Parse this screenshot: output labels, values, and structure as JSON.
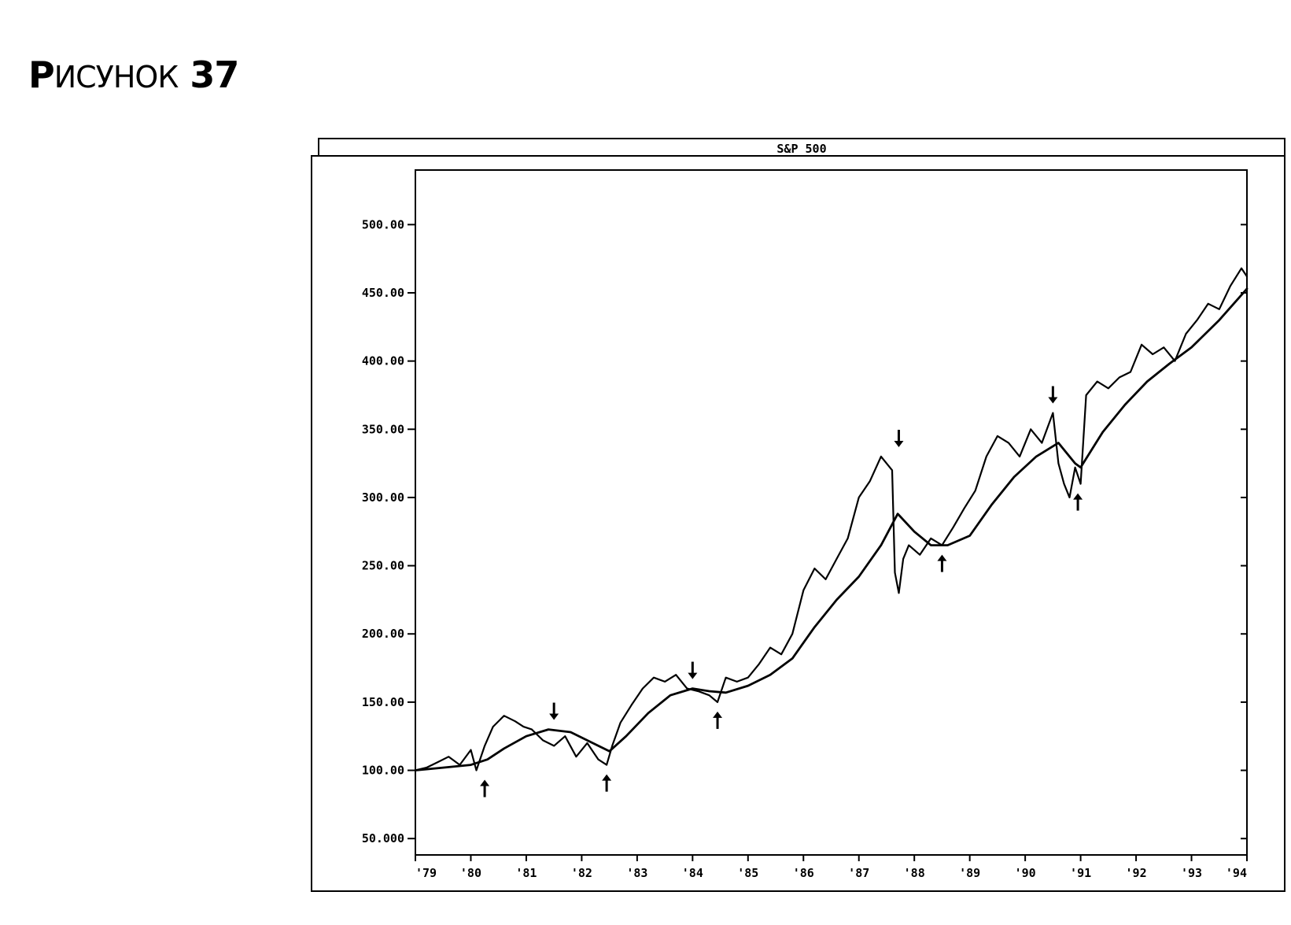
{
  "figure": {
    "caption_letter": "Р",
    "caption_rest": "ИСУНОК",
    "caption_number": "37"
  },
  "chart_data": {
    "type": "line",
    "title": "S&P 500",
    "xlabel": "",
    "ylabel": "",
    "ylim": [
      38,
      540
    ],
    "yticks": [
      50,
      100,
      150,
      200,
      250,
      300,
      350,
      400,
      450,
      500
    ],
    "ytick_labels": [
      "50.000",
      "100.00",
      "150.00",
      "200.00",
      "250.00",
      "300.00",
      "350.00",
      "400.00",
      "450.00",
      "500.00"
    ],
    "xlim": [
      1979.0,
      1994.0
    ],
    "xticks": [
      1979,
      1980,
      1981,
      1982,
      1983,
      1984,
      1985,
      1986,
      1987,
      1988,
      1989,
      1990,
      1991,
      1992,
      1993,
      1994
    ],
    "xtick_labels": [
      "'79",
      "'80",
      "'81",
      "'82",
      "'83",
      "'84",
      "'85",
      "'86",
      "'87",
      "'88",
      "'89",
      "'90",
      "'91",
      "'92",
      "'93",
      "'94"
    ],
    "grid": false,
    "series": [
      {
        "role": "price",
        "x": [
          1979.0,
          1979.2,
          1979.4,
          1979.6,
          1979.8,
          1980.0,
          1980.1,
          1980.25,
          1980.4,
          1980.6,
          1980.8,
          1980.95,
          1981.1,
          1981.3,
          1981.5,
          1981.7,
          1981.9,
          1982.1,
          1982.3,
          1982.45,
          1982.55,
          1982.7,
          1982.9,
          1983.1,
          1983.3,
          1983.5,
          1983.7,
          1983.9,
          1984.1,
          1984.3,
          1984.45,
          1984.6,
          1984.8,
          1985.0,
          1985.2,
          1985.4,
          1985.6,
          1985.8,
          1986.0,
          1986.2,
          1986.4,
          1986.6,
          1986.8,
          1987.0,
          1987.2,
          1987.4,
          1987.6,
          1987.65,
          1987.72,
          1987.8,
          1987.9,
          1988.1,
          1988.3,
          1988.5,
          1988.7,
          1988.9,
          1989.1,
          1989.3,
          1989.5,
          1989.7,
          1989.9,
          1990.1,
          1990.3,
          1990.5,
          1990.6,
          1990.7,
          1990.8,
          1990.9,
          1991.0,
          1991.1,
          1991.3,
          1991.5,
          1991.7,
          1991.9,
          1992.1,
          1992.3,
          1992.5,
          1992.7,
          1992.9,
          1993.1,
          1993.3,
          1993.5,
          1993.7,
          1993.9,
          1994.0
        ],
        "y": [
          100,
          102,
          106,
          110,
          104,
          115,
          100,
          118,
          132,
          140,
          136,
          132,
          130,
          122,
          118,
          125,
          110,
          120,
          108,
          104,
          118,
          135,
          148,
          160,
          168,
          165,
          170,
          160,
          158,
          155,
          150,
          168,
          165,
          168,
          178,
          190,
          185,
          200,
          232,
          248,
          240,
          255,
          270,
          300,
          312,
          330,
          320,
          245,
          230,
          255,
          265,
          258,
          270,
          265,
          278,
          292,
          305,
          330,
          345,
          340,
          330,
          350,
          340,
          362,
          325,
          310,
          300,
          322,
          310,
          375,
          385,
          380,
          388,
          392,
          412,
          405,
          410,
          400,
          420,
          430,
          442,
          438,
          455,
          468,
          462
        ],
        "name": ""
      },
      {
        "role": "moving-average",
        "x": [
          1979.0,
          1979.5,
          1980.0,
          1980.3,
          1980.6,
          1981.0,
          1981.4,
          1981.8,
          1982.2,
          1982.5,
          1982.8,
          1983.2,
          1983.6,
          1984.0,
          1984.3,
          1984.6,
          1985.0,
          1985.4,
          1985.8,
          1986.2,
          1986.6,
          1987.0,
          1987.4,
          1987.7,
          1988.0,
          1988.3,
          1988.6,
          1989.0,
          1989.4,
          1989.8,
          1990.2,
          1990.6,
          1990.9,
          1991.0,
          1991.4,
          1991.8,
          1992.2,
          1992.6,
          1993.0,
          1993.5,
          1994.0
        ],
        "y": [
          100,
          102,
          104,
          108,
          116,
          125,
          130,
          128,
          120,
          114,
          125,
          142,
          155,
          160,
          158,
          157,
          162,
          170,
          182,
          205,
          225,
          242,
          265,
          288,
          275,
          265,
          265,
          272,
          295,
          315,
          330,
          340,
          325,
          322,
          348,
          368,
          385,
          398,
          410,
          430,
          453
        ],
        "name": ""
      }
    ],
    "annotations": [
      {
        "type": "arrow-up",
        "x": 1980.25,
        "y": 100
      },
      {
        "type": "arrow-down",
        "x": 1981.5,
        "y": 130
      },
      {
        "type": "arrow-up",
        "x": 1982.45,
        "y": 104
      },
      {
        "type": "arrow-down",
        "x": 1984.0,
        "y": 160
      },
      {
        "type": "arrow-up",
        "x": 1984.45,
        "y": 150
      },
      {
        "type": "arrow-down",
        "x": 1987.72,
        "y": 330
      },
      {
        "type": "arrow-up",
        "x": 1988.5,
        "y": 265
      },
      {
        "type": "arrow-down",
        "x": 1990.5,
        "y": 362
      },
      {
        "type": "arrow-up",
        "x": 1990.95,
        "y": 310
      }
    ]
  }
}
